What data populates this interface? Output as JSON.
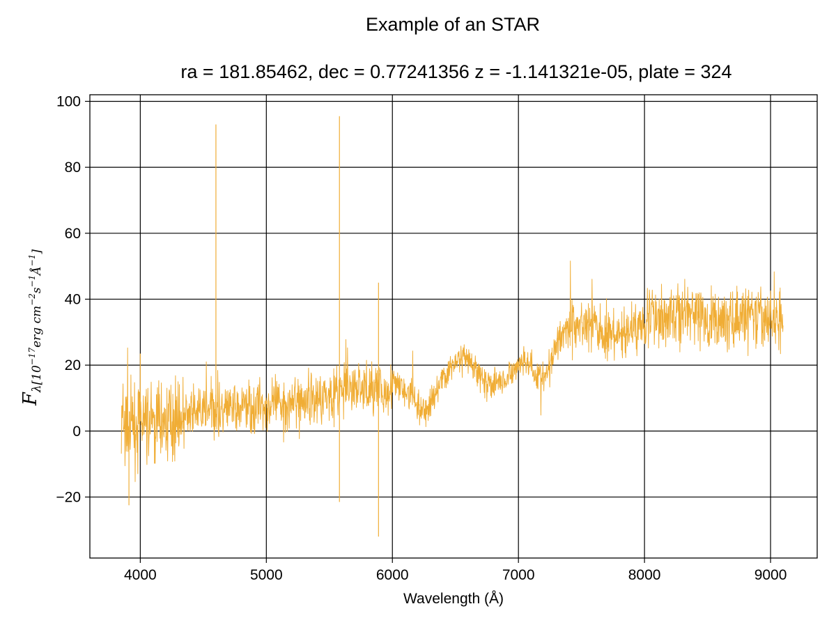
{
  "chart_data": {
    "type": "line",
    "title": "Example of an STAR",
    "subtitle": "ra = 181.85462, dec = 0.77241356 z = -1.141321e-05, plate = 324",
    "xlabel": "Wavelength (Å)",
    "ylabel": {
      "main": "F",
      "sub": "λ[10",
      "sup1": "−17",
      "mid1": "erg cm",
      "sup2": "−2",
      "mid2": "s",
      "sup3": "−1",
      "mid3": "Å",
      "sup4": "−1",
      "end": "]"
    },
    "xlim": [
      3600,
      9370
    ],
    "ylim": [
      -38.5,
      102
    ],
    "xticks": [
      4000,
      5000,
      6000,
      7000,
      8000,
      9000
    ],
    "yticks": [
      -20,
      0,
      20,
      40,
      60,
      80,
      100
    ],
    "xtick_labels": [
      "4000",
      "5000",
      "6000",
      "7000",
      "8000",
      "9000"
    ],
    "ytick_labels": [
      "−20",
      "0",
      "20",
      "40",
      "60",
      "80",
      "100"
    ],
    "grid": true,
    "line_color": "#f0ad35",
    "series": [
      {
        "x": [
          3850,
          3900,
          3950,
          4000,
          4050,
          4100,
          4150,
          4200,
          4250,
          4300,
          4350,
          4400,
          4450,
          4500,
          4550,
          4600,
          4650,
          4700,
          4750,
          4800,
          4850,
          4900,
          4950,
          5000,
          5050,
          5100,
          5150,
          5200,
          5250,
          5300,
          5350,
          5400,
          5450,
          5500,
          5550,
          5600,
          5650,
          5700,
          5750,
          5800,
          5850,
          5900,
          5950,
          6000,
          6050,
          6100,
          6150,
          6200,
          6250,
          6300,
          6350,
          6400,
          6450,
          6500,
          6550,
          6600,
          6650,
          6700,
          6750,
          6800,
          6850,
          6900,
          6950,
          7000,
          7050,
          7100,
          7150,
          7200,
          7250,
          7300,
          7350,
          7400,
          7450,
          7500,
          7550,
          7600,
          7650,
          7700,
          7750,
          7800,
          7850,
          7900,
          7950,
          8000,
          8050,
          8100,
          8150,
          8200,
          8250,
          8300,
          8350,
          8400,
          8450,
          8500,
          8550,
          8600,
          8650,
          8700,
          8750,
          8800,
          8850,
          8900,
          8950,
          9000,
          9050,
          9100
        ],
        "y": [
          2,
          1,
          1,
          3,
          2,
          2,
          3,
          3,
          4,
          4,
          5,
          5,
          5,
          6,
          6,
          7,
          6,
          7,
          7,
          7,
          8,
          7,
          8,
          7,
          8,
          8,
          9,
          8,
          9,
          9,
          10,
          10,
          11,
          11,
          12,
          12,
          13,
          13,
          13,
          13,
          13,
          12,
          12,
          13,
          14,
          12,
          11,
          7,
          5,
          8,
          13,
          16,
          19,
          21,
          22,
          21,
          19,
          17,
          15,
          14,
          15,
          15,
          17,
          20,
          22,
          20,
          17,
          16,
          20,
          27,
          30,
          31,
          32,
          33,
          32,
          33,
          30,
          28,
          29,
          28,
          30,
          31,
          32,
          34,
          35,
          34,
          34,
          35,
          36,
          36,
          36,
          35,
          34,
          33,
          34,
          34,
          33,
          34,
          34,
          35,
          35,
          34,
          33,
          34,
          34,
          35
        ]
      }
    ],
    "spikes": [
      {
        "x": 4600,
        "y": 93
      },
      {
        "x": 5580,
        "y": 95.5
      },
      {
        "x": 5580,
        "y": -21.5
      },
      {
        "x": 5890,
        "y": 45
      },
      {
        "x": 5890,
        "y": -32
      },
      {
        "x": 3910,
        "y": -22.5
      },
      {
        "x": 4000,
        "y": 23.5
      }
    ]
  }
}
